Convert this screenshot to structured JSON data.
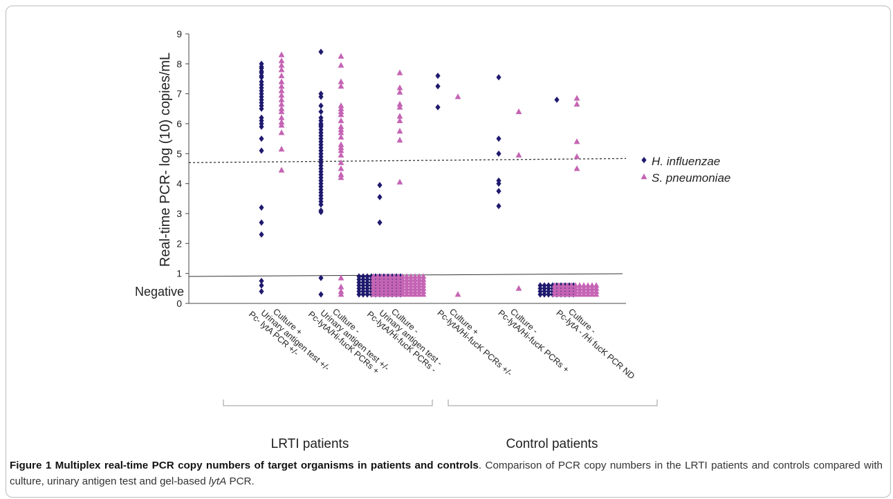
{
  "chart_data": {
    "type": "scatter",
    "ylabel": "Real-time PCR- log (10) copies/mL",
    "ylim": [
      0,
      9
    ],
    "yticks": [
      0,
      1,
      2,
      3,
      4,
      5,
      6,
      7,
      8,
      9
    ],
    "negative_label": "Negative",
    "threshold": 4.7,
    "negative_cutoff": 0.9,
    "categories": [
      [
        "Culture +",
        "Urinary antigen test +/-",
        "Pc- lytA PCR +/-"
      ],
      [
        "Culture -",
        "Urinary antigen test +/-",
        "Pc-lytA/Hi-fucK PCRs +"
      ],
      [
        "Culture -",
        "Urinary antigen test -",
        "Pc-lytA/Hi-fucK PCRs -"
      ],
      [
        "Culture +",
        "Pc-lytA/Hi-fucK PCRs +/-"
      ],
      [
        "Culture -",
        "Pc-lytA/Hi-fucK PCRs +"
      ],
      [
        "Culture -",
        "Pc-lytA - /Hi fucK PCR ND"
      ]
    ],
    "groups": [
      "LRTI patients",
      "Control patients"
    ],
    "series": [
      {
        "name": "H. influenzae",
        "color": "#1f1a6e",
        "marker": "diamond",
        "points": [
          [
            0,
            [
              8.0,
              7.9,
              7.85,
              7.75,
              7.7,
              7.6,
              7.55,
              7.4,
              7.3,
              7.2,
              7.1,
              7.0,
              6.9,
              6.8,
              6.7,
              6.6,
              6.5,
              6.2,
              6.1,
              6.0,
              5.9,
              5.5,
              5.1,
              3.2,
              2.7,
              2.3,
              0.75,
              0.6,
              0.4
            ]
          ],
          [
            1,
            [
              8.4,
              7.0,
              6.9,
              6.6,
              6.4,
              6.2,
              6.1,
              6.0,
              5.95,
              5.9,
              5.8,
              5.7,
              5.6,
              5.5,
              5.4,
              5.3,
              5.2,
              5.1,
              5.0,
              4.9,
              4.8,
              4.7,
              4.6,
              4.5,
              4.4,
              4.3,
              4.2,
              4.1,
              4.0,
              3.9,
              3.8,
              3.7,
              3.6,
              3.5,
              3.4,
              3.3,
              3.1,
              3.05,
              0.85,
              0.3
            ]
          ],
          [
            2,
            [
              3.95,
              3.55,
              2.7
            ]
          ],
          [
            3,
            [
              7.6,
              7.25,
              6.55
            ]
          ],
          [
            4,
            [
              7.55,
              5.5,
              5.0,
              4.1,
              4.0,
              3.75,
              3.25
            ]
          ],
          [
            5,
            [
              6.8
            ]
          ]
        ]
      },
      {
        "name": "S. pneumoniae",
        "color": "#c564b4",
        "marker": "triangle",
        "points": [
          [
            0,
            [
              8.3,
              8.1,
              7.95,
              7.8,
              7.6,
              7.4,
              7.25,
              7.1,
              6.95,
              6.8,
              6.65,
              6.5,
              6.4,
              6.2,
              6.05,
              5.95,
              5.7,
              5.15,
              4.45
            ]
          ],
          [
            1,
            [
              8.25,
              7.95,
              7.4,
              7.25,
              6.6,
              6.5,
              6.4,
              6.3,
              6.1,
              5.9,
              5.8,
              5.7,
              5.55,
              5.3,
              5.2,
              5.1,
              4.95,
              4.7,
              4.5,
              4.3,
              4.2,
              0.85,
              0.55,
              0.4,
              0.3
            ]
          ],
          [
            2,
            [
              7.7,
              7.2,
              7.05,
              6.65,
              6.55,
              6.25,
              6.1,
              5.75,
              5.45,
              4.05
            ]
          ],
          [
            3,
            [
              6.9,
              0.3
            ]
          ],
          [
            4,
            [
              6.4,
              4.95,
              0.5
            ]
          ],
          [
            5,
            [
              6.85,
              6.65,
              5.4,
              4.9,
              4.5
            ]
          ]
        ]
      }
    ],
    "negative_blocks": [
      {
        "category": 2,
        "series": "H. influenzae",
        "range": [
          0.3,
          0.9
        ]
      },
      {
        "category": 2,
        "series": "S. pneumoniae",
        "range": [
          0.3,
          0.9
        ]
      },
      {
        "category": 5,
        "series": "H. influenzae",
        "range": [
          0.3,
          0.6
        ]
      },
      {
        "category": 5,
        "series": "S. pneumoniae",
        "range": [
          0.3,
          0.6
        ]
      }
    ]
  },
  "caption": {
    "label": "Figure 1",
    "title": "Multiplex real-time PCR copy numbers of target organisms in patients and controls",
    "text_before": ". Comparison of PCR copy numbers in the LRTI patients and controls compared with culture, urinary antigen test and gel-based ",
    "italic": "lytA",
    "text_after": " PCR."
  }
}
